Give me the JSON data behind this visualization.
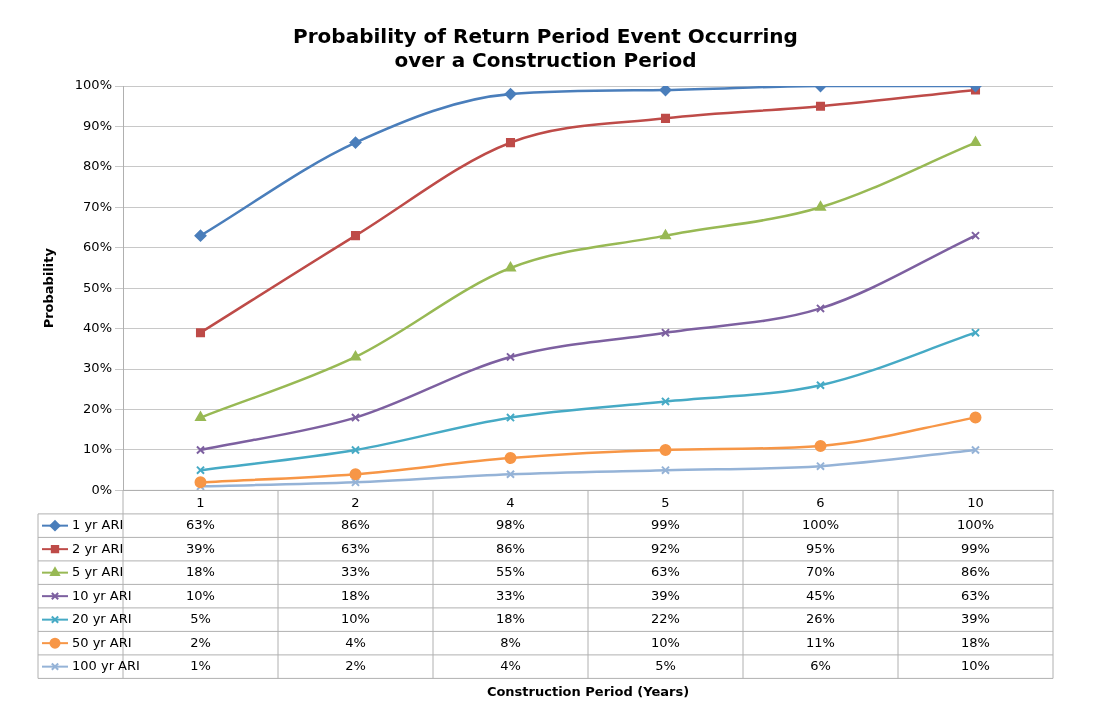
{
  "chart_data": {
    "type": "line",
    "title": "Probability of Return Period Event Occurring\nover a Construction Period",
    "annotations": [
      "Construction Period (Years)"
    ],
    "ylabel": "Probability",
    "categories": [
      "1",
      "2",
      "4",
      "5",
      "6",
      "10"
    ],
    "ylim": [
      0,
      100
    ],
    "yticks": [
      {
        "value": 0,
        "label": "0%"
      },
      {
        "value": 10,
        "label": "10%"
      },
      {
        "value": 20,
        "label": "20%"
      },
      {
        "value": 30,
        "label": "30%"
      },
      {
        "value": 40,
        "label": "40%"
      },
      {
        "value": 50,
        "label": "50%"
      },
      {
        "value": 60,
        "label": "60%"
      },
      {
        "value": 70,
        "label": "70%"
      },
      {
        "value": 80,
        "label": "80%"
      },
      {
        "value": 90,
        "label": "90%"
      },
      {
        "value": 100,
        "label": "100%"
      }
    ],
    "grid": "y",
    "legend": "bottom",
    "series": [
      {
        "name": "1 yr ARI",
        "color": "#4a7ebb",
        "marker": "diamond",
        "values": [
          63,
          86,
          98,
          99,
          100,
          100
        ],
        "value_labels": [
          "63%",
          "86%",
          "98%",
          "99%",
          "100%",
          "100%"
        ]
      },
      {
        "name": "2 yr ARI",
        "color": "#be4b48",
        "marker": "square",
        "values": [
          39,
          63,
          86,
          92,
          95,
          99
        ],
        "value_labels": [
          "39%",
          "63%",
          "86%",
          "92%",
          "95%",
          "99%"
        ]
      },
      {
        "name": "5 yr ARI",
        "color": "#98b954",
        "marker": "triangle",
        "values": [
          18,
          33,
          55,
          63,
          70,
          86
        ],
        "value_labels": [
          "18%",
          "33%",
          "55%",
          "63%",
          "70%",
          "86%"
        ]
      },
      {
        "name": "10 yr ARI",
        "color": "#7d60a0",
        "marker": "cross",
        "values": [
          10,
          18,
          33,
          39,
          45,
          63
        ],
        "value_labels": [
          "10%",
          "18%",
          "33%",
          "39%",
          "45%",
          "63%"
        ]
      },
      {
        "name": "20 yr ARI",
        "color": "#46aac5",
        "marker": "cross",
        "values": [
          5,
          10,
          18,
          22,
          26,
          39
        ],
        "value_labels": [
          "5%",
          "10%",
          "18%",
          "22%",
          "26%",
          "39%"
        ]
      },
      {
        "name": "50 yr ARI",
        "color": "#f79646",
        "marker": "circle",
        "values": [
          2,
          4,
          8,
          10,
          11,
          18
        ],
        "value_labels": [
          "2%",
          "4%",
          "8%",
          "10%",
          "11%",
          "18%"
        ]
      },
      {
        "name": "100 yr ARI",
        "color": "#95b3d7",
        "marker": "cross",
        "values": [
          1,
          2,
          4,
          5,
          6,
          10
        ],
        "value_labels": [
          "1%",
          "2%",
          "4%",
          "5%",
          "6%",
          "10%"
        ]
      }
    ]
  }
}
